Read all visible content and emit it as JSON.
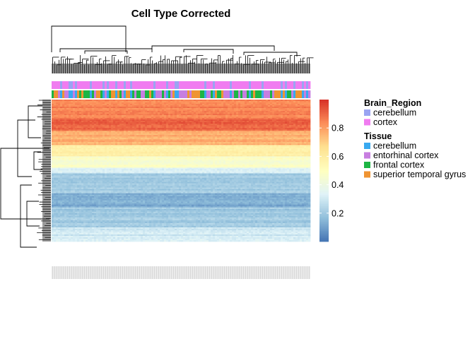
{
  "chart_data": {
    "type": "heatmap",
    "title": "Cell Type Corrected",
    "colorbar": {
      "ticks": [
        0.2,
        0.4,
        0.6,
        0.8
      ],
      "range": [
        0.0,
        1.0
      ],
      "colors": [
        "#4575b4",
        "#91bfdb",
        "#e0f3f8",
        "#ffffbf",
        "#fee090",
        "#fc8d59",
        "#d73027"
      ]
    },
    "annotations": [
      {
        "name": "Brain_Region",
        "levels": [
          {
            "label": "cerebellum",
            "color": "#9aa4f2"
          },
          {
            "label": "cortex",
            "color": "#f07cf0"
          }
        ]
      },
      {
        "name": "Tissue",
        "levels": [
          {
            "label": "cerebellum",
            "color": "#39a9f0"
          },
          {
            "label": "entorhinal cortex",
            "color": "#c77ee0"
          },
          {
            "label": "frontal cortex",
            "color": "#1db544"
          },
          {
            "label": "superior temporal gyrus",
            "color": "#ef9432"
          }
        ]
      }
    ],
    "row_blocks": [
      {
        "value": 0.85,
        "rows": 14
      },
      {
        "value": 0.91,
        "rows": 8
      },
      {
        "value": 0.76,
        "rows": 10
      },
      {
        "value": 0.6,
        "rows": 8
      },
      {
        "value": 0.47,
        "rows": 8
      },
      {
        "value": 0.34,
        "rows": 4
      },
      {
        "value": 0.2,
        "rows": 14
      },
      {
        "value": 0.13,
        "rows": 10
      },
      {
        "value": 0.2,
        "rows": 14
      },
      {
        "value": 0.3,
        "rows": 10
      }
    ],
    "legend_position": "right"
  }
}
